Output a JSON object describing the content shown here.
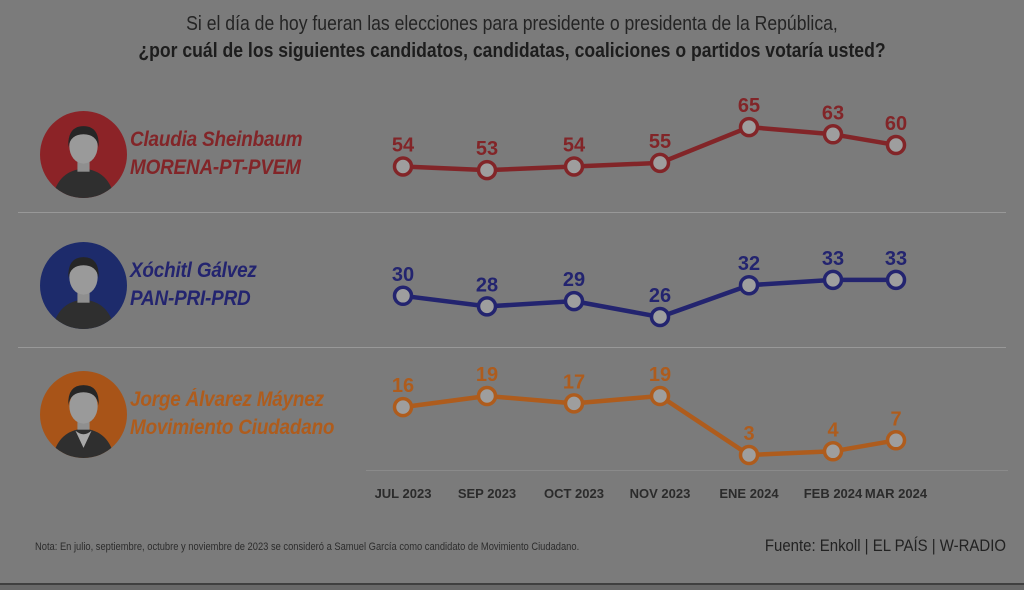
{
  "page": {
    "title_line1": "Si el día de hoy fueran las elecciones para presidente o presidenta de la República,",
    "title_line2": "¿por cuál de los siguientes candidatos, candidatas, coaliciones o partidos votaría usted?",
    "note": "Nota: En julio, septiembre, octubre y noviembre de 2023 se consideró a Samuel García como candidato de Movimiento Ciudadano.",
    "source": "Fuente: Enkoll | EL PAÍS | W-RADIO"
  },
  "colors": {
    "background": "#7b7b7b",
    "divider": "#989898",
    "marker_fill": "#9e9e9e",
    "axis_text": "#2b2b2b"
  },
  "chart_data": {
    "type": "line",
    "title": "Si el día de hoy fueran las elecciones para presidente o presidenta de la República, ¿por cuál de los siguientes candidatos, candidatas, coaliciones o partidos votaría usted?",
    "categories": [
      "JUL 2023",
      "SEP 2023",
      "OCT 2023",
      "NOV 2023",
      "ENE 2024",
      "FEB 2024",
      "MAR 2024"
    ],
    "series": [
      {
        "name": "Claudia Sheinbaum",
        "party": "MORENA-PT-PVEM",
        "values": [
          54,
          53,
          54,
          55,
          65,
          63,
          60
        ],
        "color": "#822528",
        "avatar_color": "#8c2327"
      },
      {
        "name": "Xóchitl Gálvez",
        "party": "PAN-PRI-PRD",
        "values": [
          30,
          28,
          29,
          26,
          32,
          33,
          33
        ],
        "color": "#23246f",
        "avatar_color": "#1d2b6b"
      },
      {
        "name": "Jorge Álvarez Máynez",
        "party": "Movimiento Ciudadano",
        "values": [
          16,
          19,
          17,
          19,
          3,
          4,
          7
        ],
        "color": "#ae5c1d",
        "avatar_color": "#a85418"
      }
    ],
    "xlabel": "",
    "ylabel": "",
    "grid": false,
    "legend_position": "row-labels-left",
    "marker": "open-circle",
    "value_labels": true
  }
}
